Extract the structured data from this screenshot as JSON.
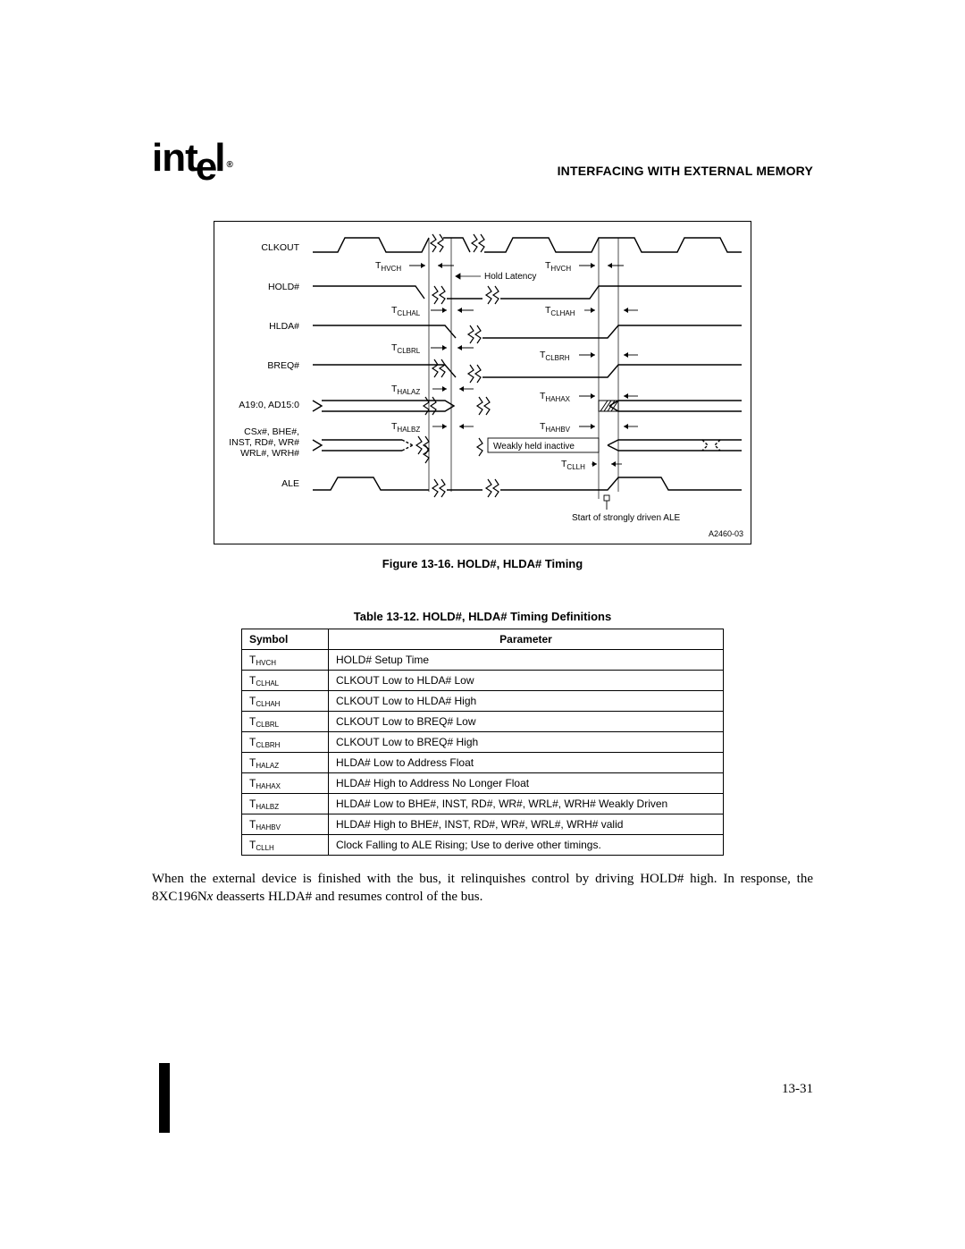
{
  "header": {
    "section_title": "INTERFACING WITH EXTERNAL MEMORY"
  },
  "figure": {
    "caption": "Figure 13-16.  HOLD#, HLDA# Timing",
    "corner_id": "A2460-03",
    "signals": [
      "CLKOUT",
      "HOLD#",
      "HLDA#",
      "BREQ#",
      "A19:0, AD15:0",
      "CSx#, BHE#,",
      "INST, RD#, WR#",
      "WRL#, WRH#",
      "ALE"
    ],
    "hold_latency_label": "Hold Latency",
    "weakly_held_label": "Weakly held inactive",
    "ale_annot": "Start of strongly driven ALE",
    "timing_labels": [
      "T_HVCH",
      "T_CLHAL",
      "T_CLHAH",
      "T_CLBRL",
      "T_CLBRH",
      "T_HALAZ",
      "T_HAHAX",
      "T_HALBZ",
      "T_HAHBV",
      "T_CLLH"
    ]
  },
  "table": {
    "caption": "Table 13-12.  HOLD#, HLDA# Timing Definitions",
    "head": {
      "symbol": "Symbol",
      "parameter": "Parameter"
    },
    "rows": [
      {
        "sym_base": "T",
        "sym_sub": "HVCH",
        "param": "HOLD# Setup Time"
      },
      {
        "sym_base": "T",
        "sym_sub": "CLHAL",
        "param": "CLKOUT Low to HLDA# Low"
      },
      {
        "sym_base": "T",
        "sym_sub": "CLHAH",
        "param": "CLKOUT Low to HLDA# High"
      },
      {
        "sym_base": "T",
        "sym_sub": "CLBRL",
        "param": "CLKOUT Low to BREQ# Low"
      },
      {
        "sym_base": "T",
        "sym_sub": "CLBRH",
        "param": "CLKOUT Low to BREQ# High"
      },
      {
        "sym_base": "T",
        "sym_sub": "HALAZ",
        "param": "HLDA# Low to Address Float"
      },
      {
        "sym_base": "T",
        "sym_sub": "HAHAX",
        "param": "HLDA# High to Address No Longer Float"
      },
      {
        "sym_base": "T",
        "sym_sub": "HALBZ",
        "param": "HLDA# Low to BHE#, INST, RD#, WR#, WRL#, WRH# Weakly Driven"
      },
      {
        "sym_base": "T",
        "sym_sub": "HAHBV",
        "param": "HLDA# High to BHE#, INST, RD#, WR#, WRL#, WRH# valid"
      },
      {
        "sym_base": "T",
        "sym_sub": "CLLH",
        "param": "Clock Falling to ALE Rising; Use to derive other timings."
      }
    ]
  },
  "body_paragraph": "When the external device is finished with the bus, it relinquishes control by driving HOLD# high. In response, the 8XC196N",
  "body_paragraph_tail": " deasserts HLDA# and resumes control of the bus.",
  "page_num": "13-31",
  "colors": {
    "text": "#000000",
    "bg": "#ffffff",
    "border": "#000000"
  }
}
